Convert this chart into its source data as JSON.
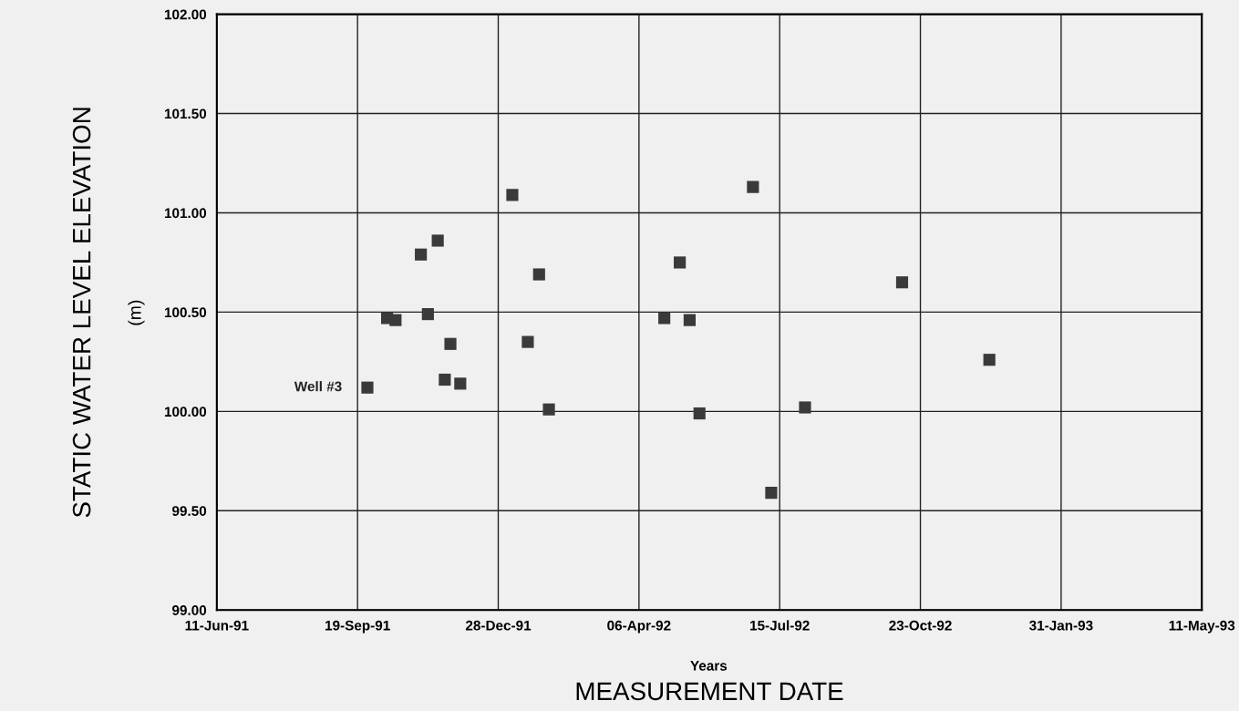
{
  "chart_data": {
    "type": "scatter",
    "xlabel": "MEASUREMENT DATE",
    "ylabel": "STATIC WATER LEVEL ELEVATION",
    "annotations": [
      "Years",
      "(m)"
    ],
    "marker": "square",
    "grid": true,
    "xlim": [
      "1991-06-11",
      "1993-05-11"
    ],
    "xticks": [
      {
        "value": "1991-06-11",
        "label": "11-Jun-91"
      },
      {
        "value": "1991-09-19",
        "label": "19-Sep-91"
      },
      {
        "value": "1991-12-28",
        "label": "28-Dec-91"
      },
      {
        "value": "1992-04-06",
        "label": "06-Apr-92"
      },
      {
        "value": "1992-07-15",
        "label": "15-Jul-92"
      },
      {
        "value": "1992-10-23",
        "label": "23-Oct-92"
      },
      {
        "value": "1993-01-31",
        "label": "31-Jan-93"
      },
      {
        "value": "1993-05-11",
        "label": "11-May-93"
      }
    ],
    "ylim": [
      99,
      102
    ],
    "yticks": [
      {
        "value": 99,
        "label": "99.00"
      },
      {
        "value": 99.5,
        "label": "99.50"
      },
      {
        "value": 100,
        "label": "100.00"
      },
      {
        "value": 100.5,
        "label": "100.50"
      },
      {
        "value": 101,
        "label": "101.00"
      },
      {
        "value": 101.5,
        "label": "101.50"
      },
      {
        "value": 102,
        "label": "102.00"
      }
    ],
    "series": [
      {
        "name": "Well #3",
        "color": "#3a3a3a",
        "x": [
          "1991-09-26",
          "1991-10-10",
          "1991-10-16",
          "1991-11-03",
          "1991-11-08",
          "1991-11-15",
          "1991-11-20",
          "1991-11-24",
          "1991-12-01",
          "1992-01-07",
          "1992-01-18",
          "1992-01-26",
          "1992-02-02",
          "1992-04-24",
          "1992-05-05",
          "1992-05-12",
          "1992-05-19",
          "1992-06-26",
          "1992-07-09",
          "1992-08-02",
          "1992-10-10",
          "1992-12-11"
        ],
        "values": [
          100.12,
          100.47,
          100.46,
          100.79,
          100.49,
          100.86,
          100.16,
          100.34,
          100.14,
          101.09,
          100.35,
          100.69,
          100.01,
          100.47,
          100.75,
          100.46,
          99.99,
          101.13,
          99.59,
          100.02,
          100.65,
          100.26
        ]
      }
    ]
  }
}
